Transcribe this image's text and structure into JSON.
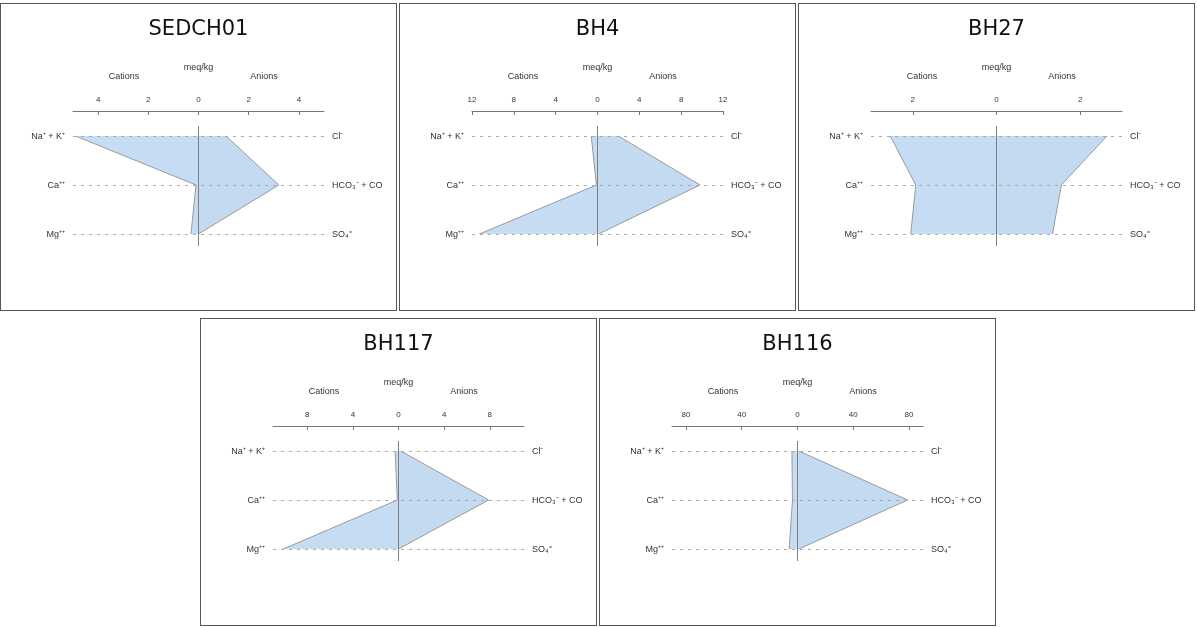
{
  "chart_data": [
    {
      "type": "area",
      "orientation": "horizontal",
      "title": "SEDCH01",
      "xlabel": "meq/kg",
      "annotations": [
        "Cations",
        "Anions"
      ],
      "categories": [
        "Na⁺ + K⁺",
        "Ca⁺⁺",
        "Mg⁺⁺"
      ],
      "y2_categories": [
        "Cl⁻",
        "HCO₃⁻ + CO",
        "SO₄⁼"
      ],
      "series": [
        {
          "color": "#c6dcf2",
          "values": [
            -4.9,
            -0.1,
            -0.3
          ]
        },
        {
          "color": "#c4daf0",
          "values": [
            1.1,
            3.2,
            0.0
          ]
        }
      ],
      "xlim": [
        -5,
        5
      ],
      "xticks": [
        {
          "value": -4,
          "label": "4"
        },
        {
          "value": -2,
          "label": "2"
        },
        0,
        2,
        4
      ],
      "marker": "none",
      "ref_lines": [
        {
          "axis": "x",
          "value": 0,
          "color": "#7f7f7f"
        },
        {
          "axis": "y",
          "value": "Na⁺ + K⁺",
          "color": "#aaaaaa",
          "line_style": "dashed"
        },
        {
          "axis": "y",
          "value": "Ca⁺⁺",
          "color": "#aaaaaa",
          "line_style": "dashed"
        },
        {
          "axis": "y",
          "value": "Mg⁺⁺",
          "color": "#aaaaaa",
          "line_style": "dashed"
        }
      ]
    },
    {
      "type": "area",
      "orientation": "horizontal",
      "title": "BH4",
      "xlabel": "meq/kg",
      "annotations": [
        "Cations",
        "Anions"
      ],
      "categories": [
        "Na⁺ + K⁺",
        "Ca⁺⁺",
        "Mg⁺⁺"
      ],
      "y2_categories": [
        "Cl⁻",
        "HCO₃⁻ + CO",
        "SO₄⁼"
      ],
      "series": [
        {
          "color": "#c6dcf2",
          "values": [
            -0.6,
            -0.1,
            -11.3
          ]
        },
        {
          "color": "#c4daf0",
          "values": [
            2.0,
            9.8,
            0.1
          ]
        }
      ],
      "xlim": [
        -12,
        12
      ],
      "xticks": [
        {
          "value": -12,
          "label": "12"
        },
        {
          "value": -8,
          "label": "8"
        },
        {
          "value": -4,
          "label": "4"
        },
        0,
        4,
        8,
        12
      ],
      "marker": "none",
      "ref_lines": [
        {
          "axis": "x",
          "value": 0,
          "color": "#7f7f7f"
        },
        {
          "axis": "y",
          "value": "Na⁺ + K⁺",
          "color": "#aaaaaa",
          "line_style": "dashed"
        },
        {
          "axis": "y",
          "value": "Ca⁺⁺",
          "color": "#aaaaaa",
          "line_style": "dashed"
        },
        {
          "axis": "y",
          "value": "Mg⁺⁺",
          "color": "#aaaaaa",
          "line_style": "dashed"
        }
      ]
    },
    {
      "type": "area",
      "orientation": "horizontal",
      "title": "BH27",
      "xlabel": "meq/kg",
      "annotations": [
        "Cations",
        "Anions"
      ],
      "categories": [
        "Na⁺ + K⁺",
        "Ca⁺⁺",
        "Mg⁺⁺"
      ],
      "y2_categories": [
        "Cl⁻",
        "HCO₃⁻ + CO",
        "SO₄⁼"
      ],
      "series": [
        {
          "color": "#c6dcf2",
          "values": [
            -2.54,
            -1.93,
            -2.05
          ]
        },
        {
          "color": "#c4daf0",
          "values": [
            2.64,
            1.55,
            1.34
          ]
        }
      ],
      "xlim": [
        -3,
        3
      ],
      "xticks": [
        {
          "value": -2,
          "label": "2"
        },
        0,
        2
      ],
      "marker": "none",
      "ref_lines": [
        {
          "axis": "x",
          "value": 0,
          "color": "#7f7f7f"
        },
        {
          "axis": "y",
          "value": "Na⁺ + K⁺",
          "color": "#aaaaaa",
          "line_style": "dashed"
        },
        {
          "axis": "y",
          "value": "Ca⁺⁺",
          "color": "#aaaaaa",
          "line_style": "dashed"
        },
        {
          "axis": "y",
          "value": "Mg⁺⁺",
          "color": "#aaaaaa",
          "line_style": "dashed"
        }
      ]
    },
    {
      "type": "area",
      "orientation": "horizontal",
      "title": "BH117",
      "xlabel": "meq/kg",
      "annotations": [
        "Cations",
        "Anions"
      ],
      "categories": [
        "Na⁺ + K⁺",
        "Ca⁺⁺",
        "Mg⁺⁺"
      ],
      "y2_categories": [
        "Cl⁻",
        "HCO₃⁻ + CO",
        "SO₄⁼"
      ],
      "series": [
        {
          "color": "#c6dcf2",
          "values": [
            -0.3,
            -0.1,
            -10.1
          ]
        },
        {
          "color": "#c4daf0",
          "values": [
            0.2,
            7.9,
            0.0
          ]
        }
      ],
      "xlim": [
        -11,
        11
      ],
      "xticks": [
        {
          "value": -8,
          "label": "8"
        },
        {
          "value": -4,
          "label": "4"
        },
        0,
        4,
        8
      ],
      "marker": "none",
      "ref_lines": [
        {
          "axis": "x",
          "value": 0,
          "color": "#7f7f7f"
        },
        {
          "axis": "y",
          "value": "Na⁺ + K⁺",
          "color": "#aaaaaa",
          "line_style": "dashed"
        },
        {
          "axis": "y",
          "value": "Ca⁺⁺",
          "color": "#aaaaaa",
          "line_style": "dashed"
        },
        {
          "axis": "y",
          "value": "Mg⁺⁺",
          "color": "#aaaaaa",
          "line_style": "dashed"
        }
      ]
    },
    {
      "type": "area",
      "orientation": "horizontal",
      "title": "BH116",
      "xlabel": "meq/kg",
      "annotations": [
        "Cations",
        "Anions"
      ],
      "categories": [
        "Na⁺ + K⁺",
        "Ca⁺⁺",
        "Mg⁺⁺"
      ],
      "y2_categories": [
        "Cl⁻",
        "HCO₃⁻ + CO",
        "SO₄⁼"
      ],
      "series": [
        {
          "color": "#c6dcf2",
          "values": [
            -4,
            -3.6,
            -6
          ]
        },
        {
          "color": "#c4daf0",
          "values": [
            1,
            79,
            1
          ]
        }
      ],
      "xlim": [
        -90,
        90
      ],
      "xticks": [
        {
          "value": -80,
          "label": "80"
        },
        {
          "value": -40,
          "label": "40"
        },
        0,
        40,
        80
      ],
      "marker": "none",
      "ref_lines": [
        {
          "axis": "x",
          "value": 0,
          "color": "#7f7f7f"
        },
        {
          "axis": "y",
          "value": "Na⁺ + K⁺",
          "color": "#aaaaaa",
          "line_style": "dashed"
        },
        {
          "axis": "y",
          "value": "Ca⁺⁺",
          "color": "#aaaaaa",
          "line_style": "dashed"
        },
        {
          "axis": "y",
          "value": "Mg⁺⁺",
          "color": "#aaaaaa",
          "line_style": "dashed"
        }
      ]
    }
  ]
}
